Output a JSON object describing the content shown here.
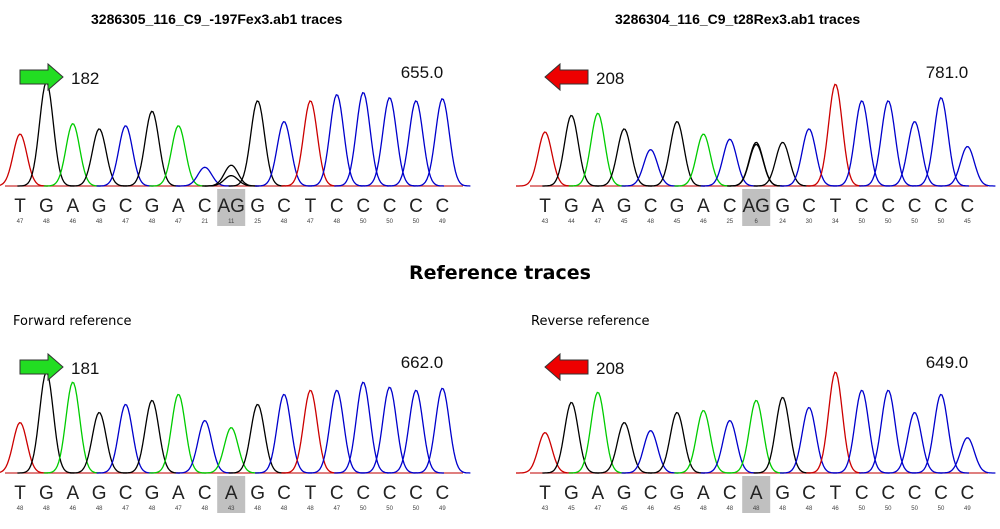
{
  "heading": "Reference traces",
  "chart_data": [
    {
      "type": "sequencing-trace",
      "title": "3286305_116_C9_-197Fex3.ab1 traces",
      "subtitle": "",
      "direction": "forward",
      "position_label": "182",
      "value_label": "655.0",
      "bases": [
        "T",
        "G",
        "A",
        "G",
        "C",
        "G",
        "A",
        "C",
        "AG",
        "G",
        "C",
        "T",
        "C",
        "C",
        "C",
        "C",
        "C"
      ],
      "quality": [
        "47",
        "48",
        "46",
        "48",
        "47",
        "48",
        "47",
        "21",
        "11",
        "25",
        "48",
        "47",
        "48",
        "50",
        "50",
        "50",
        "49"
      ],
      "highlight_index": 8,
      "colors": {
        "A": "#00cc00",
        "C": "#0000cc",
        "G": "#000000",
        "T": "#cc0000",
        "arrow": "#22dd22",
        "highlight": "#c0c0c0"
      }
    },
    {
      "type": "sequencing-trace",
      "title": "3286304_116_C9_t28Rex3.ab1 traces",
      "subtitle": "",
      "direction": "reverse",
      "position_label": "208",
      "value_label": "781.0",
      "bases": [
        "T",
        "G",
        "A",
        "G",
        "C",
        "G",
        "A",
        "C",
        "AG",
        "G",
        "C",
        "T",
        "C",
        "C",
        "C",
        "C",
        "C"
      ],
      "quality": [
        "43",
        "44",
        "47",
        "45",
        "48",
        "45",
        "46",
        "25",
        "6",
        "24",
        "30",
        "34",
        "50",
        "50",
        "50",
        "50",
        "45"
      ],
      "highlight_index": 8,
      "colors": {
        "A": "#00cc00",
        "C": "#0000cc",
        "G": "#000000",
        "T": "#cc0000",
        "arrow": "#ee0000",
        "highlight": "#c0c0c0"
      }
    },
    {
      "type": "sequencing-trace",
      "title": "",
      "subtitle": "Forward reference",
      "direction": "forward",
      "position_label": "181",
      "value_label": "662.0",
      "bases": [
        "T",
        "G",
        "A",
        "G",
        "C",
        "G",
        "A",
        "C",
        "A",
        "G",
        "C",
        "T",
        "C",
        "C",
        "C",
        "C",
        "C"
      ],
      "quality": [
        "48",
        "48",
        "46",
        "48",
        "47",
        "48",
        "47",
        "48",
        "43",
        "48",
        "48",
        "48",
        "47",
        "50",
        "50",
        "50",
        "49"
      ],
      "highlight_index": 8,
      "colors": {
        "A": "#00cc00",
        "C": "#0000cc",
        "G": "#000000",
        "T": "#cc0000",
        "arrow": "#22dd22",
        "highlight": "#c0c0c0"
      }
    },
    {
      "type": "sequencing-trace",
      "title": "",
      "subtitle": "Reverse reference",
      "direction": "reverse",
      "position_label": "208",
      "value_label": "649.0",
      "bases": [
        "T",
        "G",
        "A",
        "G",
        "C",
        "G",
        "A",
        "C",
        "A",
        "G",
        "C",
        "T",
        "C",
        "C",
        "C",
        "C",
        "C"
      ],
      "quality": [
        "43",
        "45",
        "47",
        "45",
        "46",
        "45",
        "48",
        "48",
        "48",
        "48",
        "48",
        "46",
        "50",
        "50",
        "50",
        "50",
        "49"
      ],
      "highlight_index": 8,
      "colors": {
        "A": "#00cc00",
        "C": "#0000cc",
        "G": "#000000",
        "T": "#cc0000",
        "arrow": "#ee0000",
        "highlight": "#c0c0c0"
      }
    }
  ]
}
